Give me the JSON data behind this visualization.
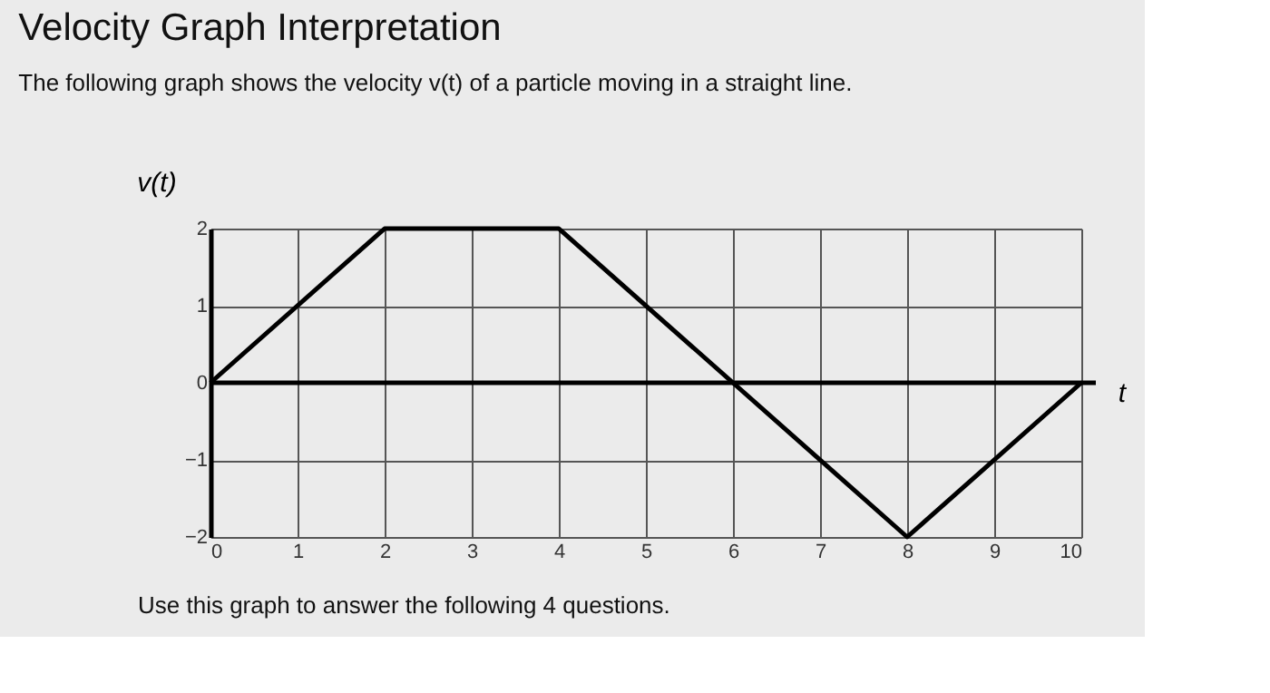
{
  "chart_data": {
    "type": "line",
    "title": "Velocity Graph Interpretation",
    "subtitle": "The following graph shows the velocity v(t) of a particle moving in a straight line.",
    "xlabel": "t",
    "ylabel": "v(t)",
    "annotations": [
      "Use this graph to answer the following 4 questions."
    ],
    "x": [
      0,
      2,
      4,
      8,
      10
    ],
    "series": [
      {
        "color": "#000000",
        "values": [
          0,
          2,
          2,
          -2,
          0
        ]
      }
    ],
    "xlim": [
      0,
      10
    ],
    "xticks": [
      0,
      1,
      2,
      3,
      4,
      5,
      6,
      7,
      8,
      9,
      10
    ],
    "ylim": [
      -2,
      2
    ],
    "yticks": [
      -2,
      -1,
      0,
      1,
      2
    ],
    "ref_lines": [
      {
        "axis": "y",
        "value": 0,
        "color": "#000000"
      }
    ],
    "grid": true,
    "marker": "none",
    "line_style": "solid"
  }
}
